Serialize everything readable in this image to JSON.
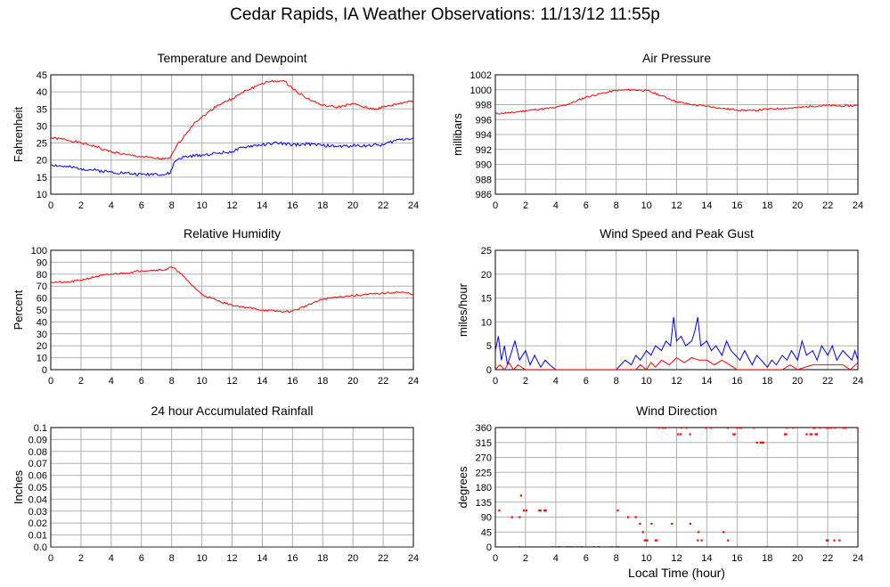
{
  "page": {
    "title": "Cedar Rapids, IA Weather Observations: 11/13/12 11:55p",
    "xaxis_label": "Local Time (hour)"
  },
  "colors": {
    "red": "#ff0000",
    "blue": "#0000ff",
    "grid": "#b0b0b0",
    "frame": "#000000"
  },
  "chart_data": [
    {
      "id": "temperature",
      "type": "line",
      "title": "Temperature and Dewpoint",
      "xlabel": "",
      "ylabel": "Fahrenheit",
      "xlim": [
        0,
        24
      ],
      "ylim": [
        10,
        45
      ],
      "yticks": [
        "10",
        "15",
        "20",
        "25",
        "30",
        "35",
        "40",
        "45"
      ],
      "xticks": [
        "0",
        "2",
        "4",
        "6",
        "8",
        "10",
        "12",
        "14",
        "16",
        "18",
        "20",
        "22",
        "24"
      ],
      "grid": true,
      "series": [
        {
          "color": "red",
          "x": [
            0,
            1,
            2,
            3,
            3.5,
            4,
            5,
            6,
            7,
            7.5,
            7.9,
            8.3,
            9,
            9.5,
            10,
            11,
            12,
            13,
            14,
            14.5,
            15,
            15.5,
            16,
            17,
            18,
            19,
            20,
            21,
            21.5,
            22,
            23,
            24
          ],
          "y": [
            26.5,
            26,
            25,
            24,
            23,
            22.5,
            21.5,
            21,
            20.5,
            20.3,
            20.5,
            24,
            28,
            31,
            32.5,
            36,
            38,
            40.5,
            42.5,
            43,
            43.2,
            43,
            41,
            38,
            36,
            35.5,
            36.5,
            35.2,
            35,
            35.5,
            36.5,
            37.5
          ],
          "jitter": 0.35
        },
        {
          "color": "blue",
          "x": [
            0,
            1,
            2,
            3,
            4,
            5,
            5.5,
            6,
            7,
            7.5,
            7.9,
            8.2,
            8.5,
            9,
            10,
            11,
            12,
            13,
            14,
            15,
            16,
            17,
            18,
            19,
            20,
            21,
            22,
            23,
            24
          ],
          "y": [
            18.7,
            18,
            17.5,
            17,
            16.5,
            16.2,
            15.9,
            15.8,
            16,
            15.7,
            16.2,
            19.5,
            20.5,
            21,
            21.5,
            22,
            22.5,
            24,
            24.5,
            25,
            24.5,
            24.7,
            24.3,
            24,
            24.2,
            24.3,
            24.5,
            26,
            26.5
          ],
          "jitter": 0.45
        }
      ]
    },
    {
      "id": "pressure",
      "type": "line",
      "title": "Air Pressure",
      "xlabel": "",
      "ylabel": "millibars",
      "xlim": [
        0,
        24
      ],
      "ylim": [
        986,
        1002
      ],
      "yticks": [
        "986",
        "988",
        "990",
        "992",
        "994",
        "996",
        "998",
        "1000",
        "1002"
      ],
      "xticks": [
        "0",
        "2",
        "4",
        "6",
        "8",
        "10",
        "12",
        "14",
        "16",
        "18",
        "20",
        "22",
        "24"
      ],
      "grid": true,
      "series": [
        {
          "color": "red",
          "x": [
            0,
            1,
            2,
            3,
            4,
            5,
            6,
            7,
            8,
            9,
            10,
            11,
            12,
            13,
            14,
            15,
            16,
            17,
            18,
            19,
            20,
            21,
            22,
            23,
            24
          ],
          "y": [
            996.8,
            996.9,
            997.2,
            997.4,
            997.6,
            998.2,
            999,
            999.5,
            999.9,
            1000,
            999.9,
            999.2,
            998.4,
            998,
            997.8,
            997.5,
            997.3,
            997.2,
            997.4,
            997.5,
            997.6,
            997.8,
            997.9,
            997.8,
            997.9
          ],
          "jitter": 0.12
        }
      ]
    },
    {
      "id": "humidity",
      "type": "line",
      "title": "Relative Humidity",
      "xlabel": "",
      "ylabel": "Percent",
      "xlim": [
        0,
        24
      ],
      "ylim": [
        0,
        100
      ],
      "yticks": [
        "0",
        "10",
        "20",
        "30",
        "40",
        "50",
        "60",
        "70",
        "80",
        "90",
        "100"
      ],
      "xticks": [
        "0",
        "2",
        "4",
        "6",
        "8",
        "10",
        "12",
        "14",
        "16",
        "18",
        "20",
        "22",
        "24"
      ],
      "grid": true,
      "series": [
        {
          "color": "red",
          "x": [
            0,
            1,
            2,
            3,
            4,
            5,
            6,
            7,
            7.5,
            8,
            8.5,
            9,
            9.5,
            10,
            11,
            12,
            13,
            14,
            15,
            15.5,
            16,
            17,
            18,
            19,
            20,
            21,
            22,
            23,
            24
          ],
          "y": [
            73.5,
            73,
            75,
            78,
            80,
            81,
            83,
            83.5,
            83.5,
            86,
            82,
            75,
            69,
            63,
            58,
            54,
            52,
            50,
            49,
            48.5,
            49,
            54,
            59,
            61,
            62,
            63,
            64,
            65,
            63.5
          ],
          "jitter": 0.8
        }
      ]
    },
    {
      "id": "wind_speed",
      "type": "line",
      "title": "Wind Speed and Peak Gust",
      "xlabel": "",
      "ylabel": "miles/hour",
      "xlim": [
        0,
        24
      ],
      "ylim": [
        0,
        25
      ],
      "yticks": [
        "0",
        "5",
        "10",
        "15",
        "20",
        "25"
      ],
      "xticks": [
        "0",
        "2",
        "4",
        "6",
        "8",
        "10",
        "12",
        "14",
        "16",
        "18",
        "20",
        "22",
        "24"
      ],
      "grid": true,
      "series": [
        {
          "color": "blue",
          "x": [
            0,
            0.2,
            0.4,
            0.6,
            0.8,
            1,
            1.3,
            1.6,
            2,
            2.3,
            2.6,
            3,
            3.3,
            3.6,
            4,
            5,
            6,
            7,
            8,
            8.3,
            8.6,
            9,
            9.3,
            9.6,
            10,
            10.3,
            10.6,
            11,
            11.3,
            11.6,
            11.8,
            12,
            12.3,
            12.6,
            13,
            13.2,
            13.4,
            13.6,
            14,
            14.3,
            14.6,
            15,
            15.3,
            15.6,
            15.9,
            16.2,
            16.5,
            17,
            17.3,
            17.6,
            18,
            18.3,
            18.6,
            19,
            19.3,
            19.6,
            20,
            20.3,
            20.6,
            21,
            21.3,
            21.6,
            22,
            22.3,
            22.6,
            23,
            23.3,
            23.6,
            23.8,
            24
          ],
          "y": [
            4,
            7,
            2,
            5,
            1,
            3,
            6,
            2,
            4,
            1,
            3,
            0.5,
            2,
            1,
            0,
            0,
            0,
            0,
            0,
            1,
            2,
            1,
            3,
            2,
            4,
            3,
            5,
            4,
            6,
            5,
            11,
            6,
            7,
            5,
            6,
            8,
            11,
            5,
            6,
            4,
            5,
            3,
            6,
            4,
            3,
            2,
            4,
            1,
            3,
            2,
            0.5,
            2,
            1,
            3,
            2,
            4,
            2,
            6,
            3,
            4,
            2,
            5,
            3,
            5,
            2,
            4,
            3,
            2,
            4,
            2
          ],
          "jitter": 0
        },
        {
          "color": "red",
          "x": [
            0,
            0.3,
            0.6,
            0.9,
            1.2,
            1.5,
            2,
            2.5,
            3,
            4,
            5,
            6,
            7,
            8,
            9,
            9.3,
            9.6,
            10,
            10.3,
            10.6,
            11,
            11.5,
            12,
            12.5,
            13,
            13.5,
            14,
            14.5,
            15,
            15.5,
            16,
            17,
            18,
            18.5,
            19,
            19.5,
            20,
            21,
            22,
            23,
            23.5,
            24
          ],
          "y": [
            0,
            1,
            0,
            1.5,
            0,
            1,
            0,
            0,
            0,
            0,
            0,
            0,
            0,
            0,
            0,
            0,
            1,
            0,
            1.5,
            0.5,
            2,
            1,
            2.5,
            1.5,
            2.5,
            2,
            2,
            1,
            2,
            1,
            0,
            0,
            0,
            0,
            0,
            1,
            0,
            1,
            1,
            1,
            0,
            1.5
          ],
          "jitter": 0
        }
      ]
    },
    {
      "id": "rainfall",
      "type": "line",
      "title": "24 hour Accumulated Rainfall",
      "xlabel": "",
      "ylabel": "Inches",
      "xlim": [
        0,
        24
      ],
      "ylim": [
        0,
        0.1
      ],
      "yticks": [
        "0.0",
        "0.01",
        "0.02",
        "0.03",
        "0.04",
        "0.05",
        "0.06",
        "0.07",
        "0.08",
        "0.09",
        "0.1"
      ],
      "xticks": [
        "0",
        "2",
        "4",
        "6",
        "8",
        "10",
        "12",
        "14",
        "16",
        "18",
        "20",
        "22",
        "24"
      ],
      "grid": true,
      "series": [
        {
          "color": "red",
          "x": [
            0,
            24
          ],
          "y": [
            0,
            0
          ],
          "jitter": 0
        }
      ]
    },
    {
      "id": "wind_direction",
      "type": "scatter",
      "title": "Wind Direction",
      "xlabel": "Local Time (hour)",
      "ylabel": "degrees",
      "xlim": [
        0,
        24
      ],
      "ylim": [
        0,
        360
      ],
      "yticks": [
        "0",
        "45",
        "90",
        "135",
        "180",
        "225",
        "270",
        "315",
        "360"
      ],
      "xticks": [
        "0",
        "2",
        "4",
        "6",
        "8",
        "10",
        "12",
        "14",
        "16",
        "18",
        "20",
        "22",
        "24"
      ],
      "grid": true,
      "series": [
        {
          "color": "red",
          "segments": [
            [
              0.0,
              0.3,
              110
            ],
            [
              0.2,
              0.6,
              90
            ],
            [
              0.4,
              0.7,
              70
            ],
            [
              0.7,
              1.2,
              110
            ],
            [
              0.9,
              1.1,
              135
            ],
            [
              1.1,
              1.7,
              90
            ],
            [
              1.7,
              1.8,
              155
            ],
            [
              1.6,
              1.7,
              0
            ],
            [
              2.0,
              2.6,
              0
            ],
            [
              1.8,
              4.0,
              110
            ],
            [
              3.7,
              8.2,
              0
            ],
            [
              8.1,
              8.8,
              110
            ],
            [
              8.7,
              9.3,
              90
            ],
            [
              9.2,
              9.4,
              70
            ],
            [
              9.4,
              10.4,
              70
            ],
            [
              9.6,
              10.2,
              45
            ],
            [
              9.8,
              10.1,
              20
            ],
            [
              10.1,
              10.3,
              0
            ],
            [
              10.4,
              10.6,
              70
            ],
            [
              10.6,
              11.0,
              20
            ],
            [
              10.4,
              11.8,
              360
            ],
            [
              11.2,
              11.6,
              20
            ],
            [
              11.6,
              11.9,
              70
            ],
            [
              11.8,
              12.2,
              45
            ],
            [
              12.2,
              12.6,
              45
            ],
            [
              12.3,
              12.5,
              70
            ],
            [
              12.6,
              12.9,
              20
            ],
            [
              12.9,
              13.1,
              70
            ],
            [
              13.1,
              13.5,
              45
            ],
            [
              13.4,
              13.8,
              20
            ],
            [
              13.5,
              15.5,
              360
            ],
            [
              11.8,
              13.0,
              360
            ],
            [
              12.1,
              12.3,
              340
            ],
            [
              12.8,
              13.0,
              340
            ],
            [
              14.0,
              14.2,
              45
            ],
            [
              14.8,
              15.0,
              20
            ],
            [
              15.1,
              15.3,
              45
            ],
            [
              15.4,
              15.5,
              20
            ],
            [
              15.5,
              16.0,
              340
            ],
            [
              16.0,
              17.2,
              360
            ],
            [
              16.8,
              18.5,
              315
            ],
            [
              16.9,
              17.0,
              0
            ],
            [
              17.9,
              18.1,
              0
            ],
            [
              18.4,
              19.3,
              340
            ],
            [
              19.2,
              19.5,
              360
            ],
            [
              19.6,
              22.6,
              360
            ],
            [
              20.1,
              20.4,
              340
            ],
            [
              20.6,
              21.3,
              340
            ],
            [
              22.0,
              22.6,
              340
            ],
            [
              22.5,
              24.0,
              360
            ],
            [
              23.3,
              23.6,
              340
            ],
            [
              20.0,
              20.3,
              20
            ],
            [
              21.5,
              22.8,
              20
            ],
            [
              23.5,
              23.7,
              20
            ]
          ]
        }
      ]
    }
  ]
}
